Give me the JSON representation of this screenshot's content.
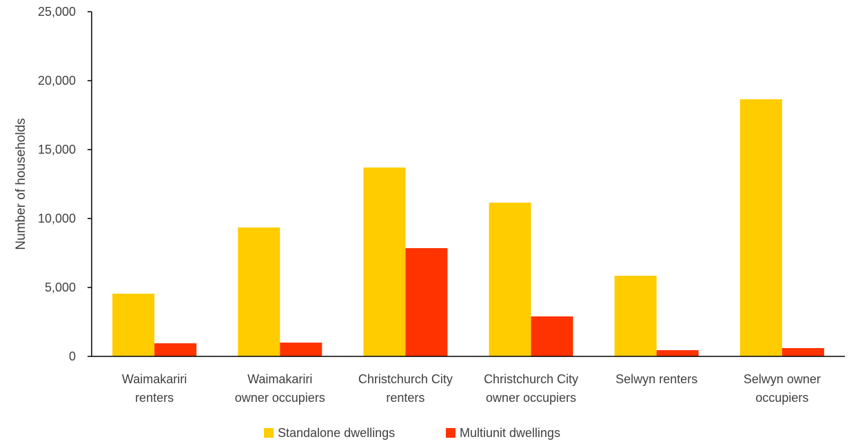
{
  "chart_data": {
    "type": "bar",
    "title": "",
    "xlabel": "",
    "ylabel": "Number of households",
    "ylim": [
      0,
      25000
    ],
    "yticks": [
      0,
      5000,
      10000,
      15000,
      20000,
      25000
    ],
    "ytick_labels": [
      "0",
      "5,000",
      "10,000",
      "15,000",
      "20,000",
      "25,000"
    ],
    "grid": false,
    "legend_position": "bottom",
    "categories": [
      [
        "Waimakariri",
        "renters"
      ],
      [
        "Waimakariri",
        "owner occupiers"
      ],
      [
        "Christchurch City",
        "renters"
      ],
      [
        "Christchurch City",
        "owner occupiers"
      ],
      [
        "Selwyn renters"
      ],
      [
        "Selwyn owner",
        "occupiers"
      ]
    ],
    "series": [
      {
        "name": "Standalone dwellings",
        "color": "#FFCC00",
        "values": [
          4550,
          9350,
          13700,
          11150,
          5850,
          18650
        ]
      },
      {
        "name": "Multiunit dwellings",
        "color": "#FF3300",
        "values": [
          950,
          1000,
          7850,
          2900,
          450,
          600
        ]
      }
    ]
  }
}
